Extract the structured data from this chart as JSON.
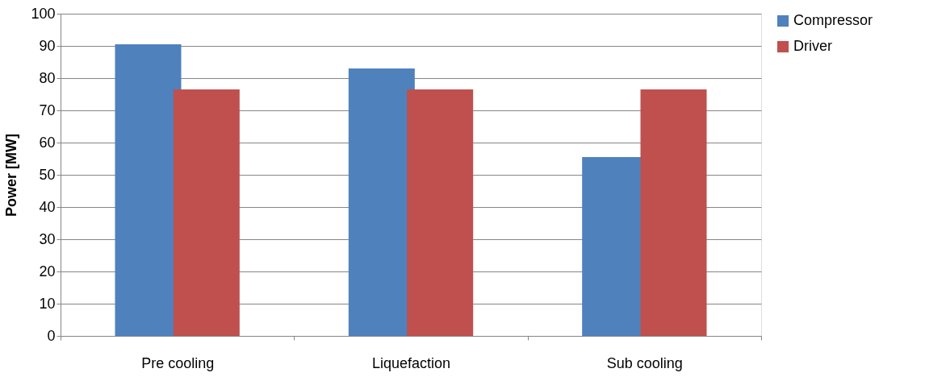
{
  "chart_data": {
    "type": "bar",
    "ylabel": "Power [MW]",
    "categories": [
      "Pre cooling",
      "Liquefaction",
      "Sub cooling"
    ],
    "series": [
      {
        "name": "Compressor",
        "color": "#4f81bd",
        "values": [
          90.5,
          83,
          55.5
        ]
      },
      {
        "name": "Driver",
        "color": "#c0504d",
        "values": [
          76.5,
          76.5,
          76.5
        ]
      }
    ],
    "ylim": [
      0,
      100
    ],
    "yticks": [
      0,
      10,
      20,
      30,
      40,
      50,
      60,
      70,
      80,
      90,
      100
    ],
    "grid": "y",
    "legend": "right"
  }
}
